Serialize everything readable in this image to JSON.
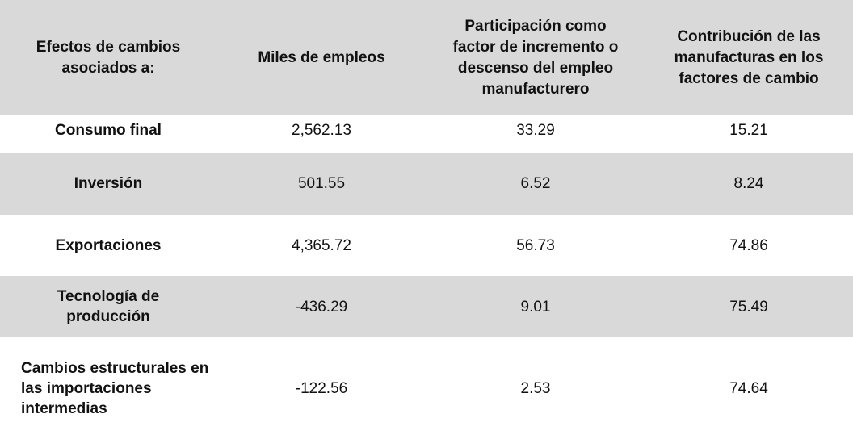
{
  "chart_data": {
    "type": "table",
    "columns": [
      "Efectos de cambios asociados a:",
      "Miles de empleos",
      "Participación como factor de incremento o descenso del empleo manufacturero",
      "Contribución de las manufacturas en los factores de cambio"
    ],
    "rows": [
      {
        "label": "Consumo final",
        "values": [
          "2,562.13",
          "33.29",
          "15.21"
        ]
      },
      {
        "label": "Inversión",
        "values": [
          "501.55",
          "6.52",
          "8.24"
        ]
      },
      {
        "label": "Exportaciones",
        "values": [
          "4,365.72",
          "56.73",
          "74.86"
        ]
      },
      {
        "label": "Tecnología de producción",
        "values": [
          "-436.29",
          "9.01",
          "75.49"
        ]
      },
      {
        "label": "Cambios estructurales en las importaciones intermedias",
        "values": [
          "-122.56",
          "2.53",
          "74.64"
        ]
      }
    ]
  },
  "colors": {
    "header_band": "#d9d9d9",
    "shaded_row": "#d9d9d9",
    "plain_row": "#ffffff",
    "text": "#111111"
  }
}
